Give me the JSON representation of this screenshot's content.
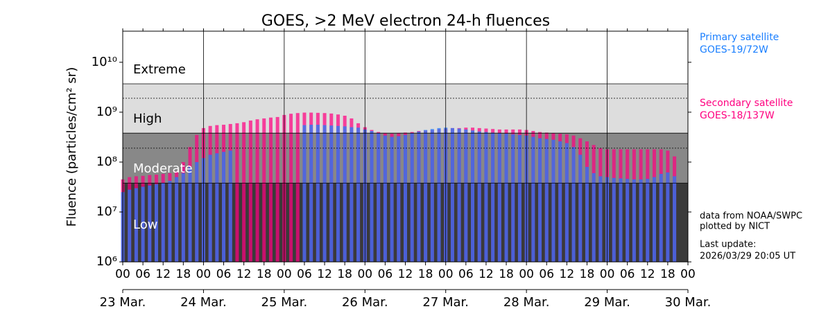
{
  "chart_data": {
    "type": "bar",
    "title": "GOES, >2 MeV electron 24-h fluences",
    "y_label": "Fluence (particles/cm² sr)",
    "log_y": true,
    "ylim": [
      1000000.0,
      42000000000.0
    ],
    "yticks": [
      {
        "value": 1000000.0,
        "label": "10⁶"
      },
      {
        "value": 10000000.0,
        "label": "10⁷"
      },
      {
        "value": 100000000.0,
        "label": "10⁸"
      },
      {
        "value": 1000000000.0,
        "label": "10⁹"
      },
      {
        "value": 10000000000.0,
        "label": "10¹⁰"
      }
    ],
    "xlim": [
      0,
      168
    ],
    "xticks": [
      {
        "value": 0,
        "label": "00"
      },
      {
        "value": 6,
        "label": "06"
      },
      {
        "value": 12,
        "label": "12"
      },
      {
        "value": 18,
        "label": "18"
      },
      {
        "value": 24,
        "label": "00"
      },
      {
        "value": 30,
        "label": "06"
      },
      {
        "value": 36,
        "label": "12"
      },
      {
        "value": 42,
        "label": "18"
      },
      {
        "value": 48,
        "label": "00"
      },
      {
        "value": 54,
        "label": "06"
      },
      {
        "value": 60,
        "label": "12"
      },
      {
        "value": 66,
        "label": "18"
      },
      {
        "value": 72,
        "label": "00"
      },
      {
        "value": 78,
        "label": "06"
      },
      {
        "value": 84,
        "label": "12"
      },
      {
        "value": 90,
        "label": "18"
      },
      {
        "value": 96,
        "label": "00"
      },
      {
        "value": 102,
        "label": "06"
      },
      {
        "value": 108,
        "label": "12"
      },
      {
        "value": 114,
        "label": "18"
      },
      {
        "value": 120,
        "label": "00"
      },
      {
        "value": 126,
        "label": "06"
      },
      {
        "value": 132,
        "label": "12"
      },
      {
        "value": 138,
        "label": "18"
      },
      {
        "value": 144,
        "label": "00"
      },
      {
        "value": 150,
        "label": "06"
      },
      {
        "value": 156,
        "label": "12"
      },
      {
        "value": 162,
        "label": "18"
      },
      {
        "value": 168,
        "label": "00"
      }
    ],
    "day_ticks": [
      {
        "value": 0,
        "label": "23 Mar."
      },
      {
        "value": 24,
        "label": "24 Mar."
      },
      {
        "value": 48,
        "label": "25 Mar."
      },
      {
        "value": 72,
        "label": "26 Mar."
      },
      {
        "value": 96,
        "label": "27 Mar."
      },
      {
        "value": 120,
        "label": "28 Mar."
      },
      {
        "value": 144,
        "label": "29 Mar."
      },
      {
        "value": 168,
        "label": "30 Mar."
      }
    ],
    "levels": [
      {
        "label": "Extreme",
        "min": 3700000000.0,
        "color": "#ffffff",
        "text_color": "#000000"
      },
      {
        "label": "High",
        "min": 380000000.0,
        "color": "#dddddd",
        "text_color": "#000000"
      },
      {
        "label": "Moderate",
        "min": 38000000.0,
        "color": "#888888",
        "text_color": "#ffffff"
      },
      {
        "label": "Low",
        "min": 1000000.0,
        "color": "#3a3a3a",
        "text_color": "#ffffff"
      }
    ],
    "reference_lines": [
      1900000000.0,
      190000000.0
    ],
    "x": [
      0,
      2,
      4,
      6,
      8,
      10,
      12,
      14,
      16,
      18,
      20,
      22,
      24,
      26,
      28,
      30,
      32,
      34,
      36,
      38,
      40,
      42,
      44,
      46,
      48,
      50,
      52,
      54,
      56,
      58,
      60,
      62,
      64,
      66,
      68,
      70,
      72,
      74,
      76,
      78,
      80,
      82,
      84,
      86,
      88,
      90,
      92,
      94,
      96,
      98,
      100,
      102,
      104,
      106,
      108,
      110,
      112,
      114,
      116,
      118,
      120,
      122,
      124,
      126,
      128,
      130,
      132,
      134,
      136,
      138,
      140,
      142,
      144,
      146,
      148,
      150,
      152,
      154,
      156,
      158,
      160,
      162,
      164
    ],
    "series": [
      {
        "name": "Secondary satellite",
        "satellite": "GOES-18/137W",
        "color": "#ff0080",
        "values": [
          45000000.0,
          50000000.0,
          52000000.0,
          53000000.0,
          55000000.0,
          56000000.0,
          58000000.0,
          60000000.0,
          65000000.0,
          100000000.0,
          200000000.0,
          350000000.0,
          480000000.0,
          530000000.0,
          550000000.0,
          560000000.0,
          580000000.0,
          600000000.0,
          630000000.0,
          680000000.0,
          720000000.0,
          750000000.0,
          780000000.0,
          800000000.0,
          880000000.0,
          930000000.0,
          960000000.0,
          980000000.0,
          980000000.0,
          970000000.0,
          960000000.0,
          940000000.0,
          900000000.0,
          850000000.0,
          750000000.0,
          600000000.0,
          500000000.0,
          440000000.0,
          400000000.0,
          380000000.0,
          370000000.0,
          380000000.0,
          390000000.0,
          400000000.0,
          420000000.0,
          430000000.0,
          440000000.0,
          460000000.0,
          470000000.0,
          480000000.0,
          480000000.0,
          490000000.0,
          490000000.0,
          480000000.0,
          470000000.0,
          460000000.0,
          450000000.0,
          450000000.0,
          450000000.0,
          450000000.0,
          440000000.0,
          420000000.0,
          400000000.0,
          390000000.0,
          380000000.0,
          370000000.0,
          360000000.0,
          340000000.0,
          300000000.0,
          260000000.0,
          220000000.0,
          190000000.0,
          180000000.0,
          180000000.0,
          180000000.0,
          180000000.0,
          180000000.0,
          180000000.0,
          180000000.0,
          180000000.0,
          180000000.0,
          170000000.0,
          130000000.0
        ]
      },
      {
        "name": "Primary satellite",
        "satellite": "GOES-19/72W",
        "color": "#1a7fff",
        "values": [
          25000000.0,
          28000000.0,
          30000000.0,
          32000000.0,
          34000000.0,
          36000000.0,
          38000000.0,
          42000000.0,
          50000000.0,
          60000000.0,
          80000000.0,
          100000000.0,
          120000000.0,
          140000000.0,
          150000000.0,
          160000000.0,
          170000000.0,
          null,
          null,
          null,
          null,
          null,
          null,
          null,
          null,
          null,
          null,
          550000000.0,
          560000000.0,
          560000000.0,
          550000000.0,
          540000000.0,
          530000000.0,
          520000000.0,
          500000000.0,
          490000000.0,
          450000000.0,
          420000000.0,
          380000000.0,
          340000000.0,
          320000000.0,
          330000000.0,
          350000000.0,
          380000000.0,
          410000000.0,
          440000000.0,
          460000000.0,
          480000000.0,
          490000000.0,
          480000000.0,
          470000000.0,
          450000000.0,
          430000000.0,
          410000000.0,
          400000000.0,
          390000000.0,
          380000000.0,
          370000000.0,
          360000000.0,
          350000000.0,
          340000000.0,
          320000000.0,
          300000000.0,
          290000000.0,
          280000000.0,
          260000000.0,
          240000000.0,
          200000000.0,
          140000000.0,
          80000000.0,
          60000000.0,
          52000000.0,
          50000000.0,
          48000000.0,
          47000000.0,
          46000000.0,
          45000000.0,
          45000000.0,
          46000000.0,
          50000000.0,
          58000000.0,
          62000000.0,
          52000000.0
        ]
      }
    ],
    "notes": [
      "data from NOAA/SWPC",
      "plotted by NICT",
      "Last update:",
      "2026/03/29 20:05 UT"
    ]
  }
}
